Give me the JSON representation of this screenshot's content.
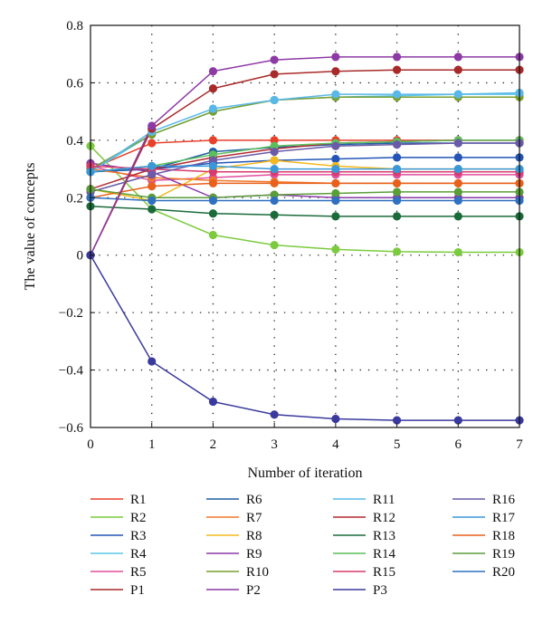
{
  "chart_data": {
    "type": "line",
    "title": "",
    "xlabel": "Number of iteration",
    "ylabel": "The value of concepts",
    "x": [
      0,
      1,
      2,
      3,
      4,
      5,
      6,
      7
    ],
    "xlim": [
      0,
      7
    ],
    "ylim": [
      -0.6,
      0.8
    ],
    "xticks": [
      "0",
      "1",
      "2",
      "3",
      "4",
      "5",
      "6",
      "7"
    ],
    "yticks": [
      "−0.6",
      "−0.4",
      "−0.2",
      "0",
      "0.2",
      "0.4",
      "0.6",
      "0.8"
    ],
    "grid": true,
    "legend_position": "bottom",
    "series": [
      {
        "name": "R1",
        "color": "#e8402a",
        "values": [
          0.3,
          0.39,
          0.4,
          0.4,
          0.4,
          0.4,
          0.4,
          0.4
        ]
      },
      {
        "name": "R2",
        "color": "#7ccb3e",
        "values": [
          0.38,
          0.16,
          0.07,
          0.035,
          0.02,
          0.012,
          0.01,
          0.01
        ]
      },
      {
        "name": "R3",
        "color": "#2455b6",
        "values": [
          0.29,
          0.3,
          0.32,
          0.33,
          0.335,
          0.34,
          0.34,
          0.34
        ]
      },
      {
        "name": "R4",
        "color": "#5bc8ea",
        "values": [
          0.29,
          0.42,
          0.5,
          0.54,
          0.55,
          0.555,
          0.56,
          0.56
        ]
      },
      {
        "name": "R5",
        "color": "#e04f9c",
        "values": [
          0.31,
          0.26,
          0.27,
          0.28,
          0.28,
          0.28,
          0.28,
          0.28
        ]
      },
      {
        "name": "R6",
        "color": "#1e5fa5",
        "values": [
          0.29,
          0.3,
          0.36,
          0.375,
          0.385,
          0.39,
          0.39,
          0.39
        ]
      },
      {
        "name": "R7",
        "color": "#f07628",
        "values": [
          0.3,
          0.27,
          0.26,
          0.255,
          0.25,
          0.25,
          0.25,
          0.25
        ]
      },
      {
        "name": "R8",
        "color": "#f4b81c",
        "values": [
          0.23,
          0.19,
          0.3,
          0.33,
          0.31,
          0.3,
          0.3,
          0.3
        ]
      },
      {
        "name": "R9",
        "color": "#8b3aa8",
        "values": [
          0.32,
          0.29,
          0.2,
          0.21,
          0.2,
          0.2,
          0.2,
          0.2
        ]
      },
      {
        "name": "R10",
        "color": "#7a9e2e",
        "values": [
          0.3,
          0.42,
          0.5,
          0.54,
          0.55,
          0.55,
          0.55,
          0.55
        ]
      },
      {
        "name": "R11",
        "color": "#5ab8e8",
        "values": [
          0.29,
          0.43,
          0.51,
          0.54,
          0.56,
          0.56,
          0.56,
          0.565
        ]
      },
      {
        "name": "R12",
        "color": "#b42a30",
        "values": [
          0.23,
          0.3,
          0.34,
          0.37,
          0.39,
          0.395,
          0.4,
          0.4
        ]
      },
      {
        "name": "R13",
        "color": "#1b6b3a",
        "values": [
          0.17,
          0.16,
          0.145,
          0.14,
          0.135,
          0.135,
          0.135,
          0.135
        ]
      },
      {
        "name": "R14",
        "color": "#5cbf5a",
        "values": [
          0.29,
          0.31,
          0.35,
          0.38,
          0.39,
          0.395,
          0.4,
          0.4
        ]
      },
      {
        "name": "R15",
        "color": "#d93a6c",
        "values": [
          0.31,
          0.3,
          0.29,
          0.29,
          0.29,
          0.29,
          0.29,
          0.29
        ]
      },
      {
        "name": "R16",
        "color": "#6a5aa8",
        "values": [
          0.22,
          0.28,
          0.33,
          0.36,
          0.38,
          0.385,
          0.39,
          0.39
        ]
      },
      {
        "name": "R17",
        "color": "#3a98d8",
        "values": [
          0.29,
          0.31,
          0.31,
          0.3,
          0.3,
          0.3,
          0.3,
          0.3
        ]
      },
      {
        "name": "R18",
        "color": "#e8601c",
        "values": [
          0.2,
          0.24,
          0.25,
          0.25,
          0.25,
          0.25,
          0.25,
          0.25
        ]
      },
      {
        "name": "R19",
        "color": "#5a9e3a",
        "values": [
          0.23,
          0.2,
          0.2,
          0.21,
          0.215,
          0.22,
          0.22,
          0.22
        ]
      },
      {
        "name": "R20",
        "color": "#2f70c0",
        "values": [
          0.2,
          0.19,
          0.19,
          0.19,
          0.19,
          0.19,
          0.19,
          0.19
        ]
      },
      {
        "name": "P1",
        "color": "#a82a2a",
        "values": [
          0.0,
          0.44,
          0.58,
          0.63,
          0.64,
          0.645,
          0.645,
          0.645
        ]
      },
      {
        "name": "P2",
        "color": "#8e3aa6",
        "values": [
          0.0,
          0.45,
          0.64,
          0.68,
          0.69,
          0.69,
          0.69,
          0.69
        ]
      },
      {
        "name": "P3",
        "color": "#3a3a9e",
        "values": [
          0.0,
          -0.37,
          -0.51,
          -0.555,
          -0.57,
          -0.575,
          -0.575,
          -0.575
        ]
      }
    ]
  }
}
